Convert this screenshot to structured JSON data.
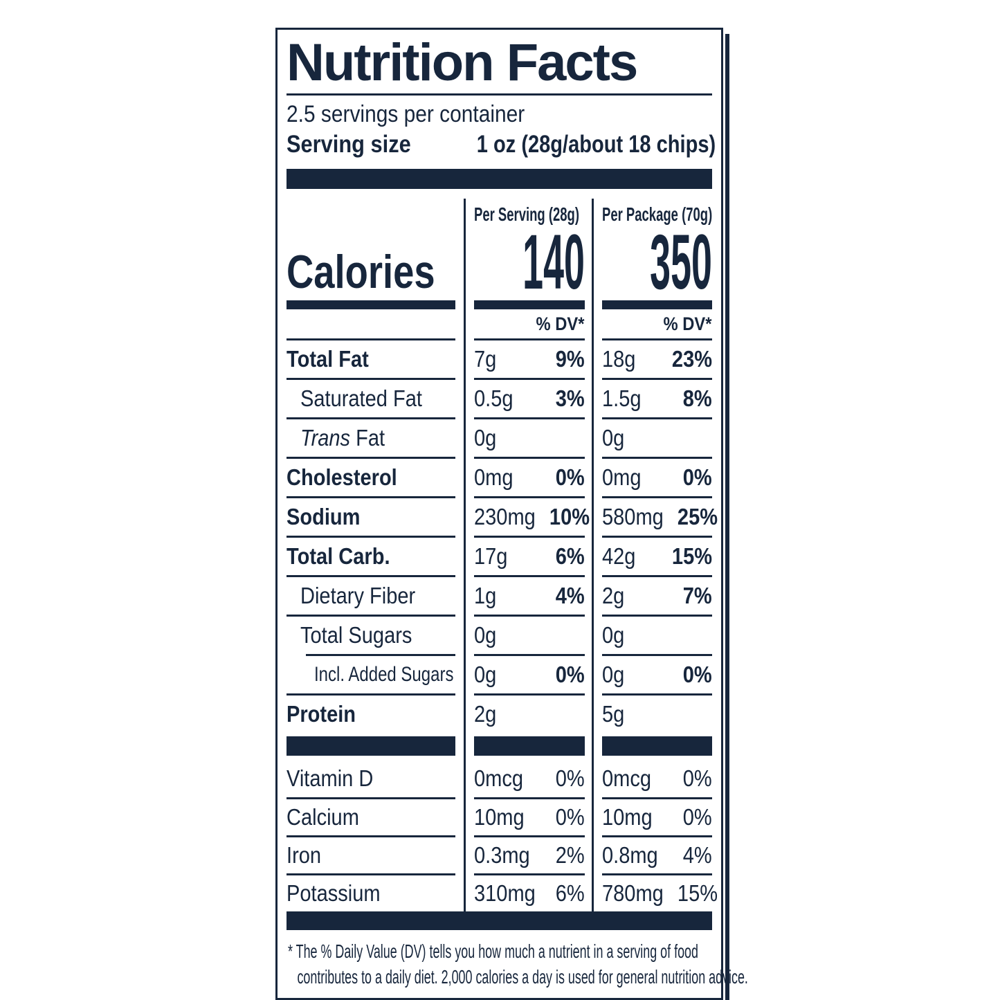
{
  "colors": {
    "brand_navy": "#17263c"
  },
  "label": {
    "title": "Nutrition Facts",
    "servings_per_container": "2.5 servings per container",
    "serving_size_label": "Serving size",
    "serving_size_value": "1 oz (28g/about 18 chips)",
    "dv_header": "% DV*",
    "calories": {
      "label": "Calories",
      "columns": [
        {
          "header": "Per Serving (28g)",
          "value": "140"
        },
        {
          "header": "Per Package (70g)",
          "value": "350"
        }
      ]
    },
    "rows": [
      {
        "name": "Total Fat",
        "serving_amount": "7g",
        "serving_dv": "9%",
        "package_amount": "18g",
        "package_dv": "23%"
      },
      {
        "name": "Saturated Fat",
        "serving_amount": "0.5g",
        "serving_dv": "3%",
        "package_amount": "1.5g",
        "package_dv": "8%"
      },
      {
        "name_italic": "Trans",
        "name": " Fat",
        "serving_amount": "0g",
        "serving_dv": "",
        "package_amount": "0g",
        "package_dv": ""
      },
      {
        "name": "Cholesterol",
        "serving_amount": "0mg",
        "serving_dv": "0%",
        "package_amount": "0mg",
        "package_dv": "0%"
      },
      {
        "name": "Sodium",
        "serving_amount": "230mg",
        "serving_dv": "10%",
        "package_amount": "580mg",
        "package_dv": "25%"
      },
      {
        "name": "Total Carb.",
        "serving_amount": "17g",
        "serving_dv": "6%",
        "package_amount": "42g",
        "package_dv": "15%"
      },
      {
        "name": "Dietary Fiber",
        "serving_amount": "1g",
        "serving_dv": "4%",
        "package_amount": "2g",
        "package_dv": "7%"
      },
      {
        "name": "Total Sugars",
        "serving_amount": "0g",
        "serving_dv": "",
        "package_amount": "0g",
        "package_dv": ""
      },
      {
        "name": "Incl. Added Sugars",
        "serving_amount": "0g",
        "serving_dv": "0%",
        "package_amount": "0g",
        "package_dv": "0%"
      },
      {
        "name": "Protein",
        "serving_amount": "2g",
        "serving_dv": "",
        "package_amount": "5g",
        "package_dv": ""
      }
    ],
    "vitamins": [
      {
        "name": "Vitamin D",
        "serving_amount": "0mcg",
        "serving_dv": "0%",
        "package_amount": "0mcg",
        "package_dv": "0%"
      },
      {
        "name": "Calcium",
        "serving_amount": "10mg",
        "serving_dv": "0%",
        "package_amount": "10mg",
        "package_dv": "0%"
      },
      {
        "name": "Iron",
        "serving_amount": "0.3mg",
        "serving_dv": "2%",
        "package_amount": "0.8mg",
        "package_dv": "4%"
      },
      {
        "name": "Potassium",
        "serving_amount": "310mg",
        "serving_dv": "6%",
        "package_amount": "780mg",
        "package_dv": "15%"
      }
    ],
    "footnote": {
      "line1": "* The % Daily Value (DV) tells you how much a nutrient in a serving of food",
      "line2": "contributes to a daily diet. 2,000 calories a day is used for general nutrition advice."
    }
  }
}
